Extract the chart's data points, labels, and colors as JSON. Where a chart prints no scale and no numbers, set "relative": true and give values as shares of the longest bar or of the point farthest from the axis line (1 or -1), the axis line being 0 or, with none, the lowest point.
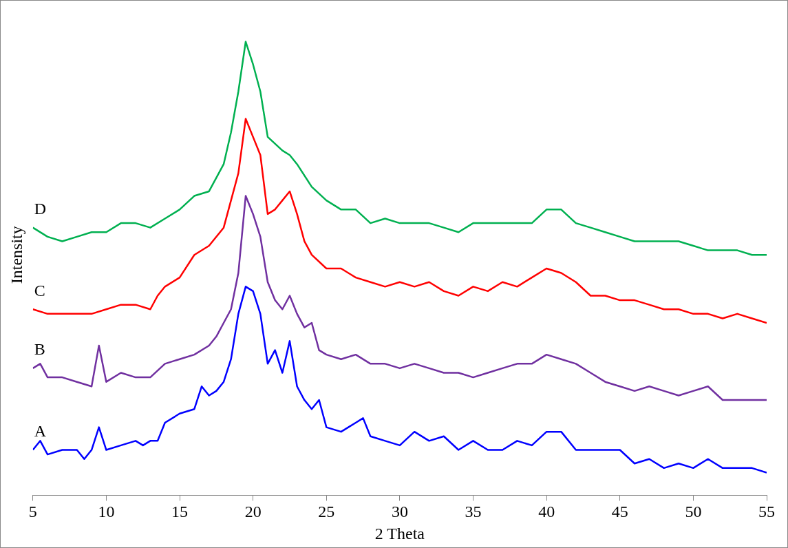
{
  "chart_data": {
    "type": "line",
    "xlabel": "2 Theta",
    "ylabel": "Intensity",
    "relative": true,
    "xlim": [
      5,
      55
    ],
    "xticks": [
      5,
      10,
      15,
      20,
      25,
      30,
      35,
      40,
      45,
      50,
      55
    ],
    "grid": false,
    "legend": false,
    "marker": "none",
    "line_style": "solid",
    "series": [
      {
        "name": "A",
        "color": "#0000ff",
        "x": [
          5,
          5.5,
          6,
          7,
          8,
          8.5,
          9,
          9.5,
          10,
          11,
          12,
          12.5,
          13,
          13.5,
          14,
          15,
          16,
          16.5,
          17,
          17.5,
          18,
          18.5,
          19,
          19.5,
          20,
          20.5,
          21,
          21.5,
          22,
          22.5,
          23,
          23.5,
          24,
          24.5,
          25,
          26,
          27,
          27.5,
          28,
          29,
          30,
          31,
          32,
          33,
          34,
          35,
          36,
          37,
          38,
          39,
          40,
          41,
          42,
          43,
          44,
          45,
          46,
          47,
          48,
          49,
          50,
          51,
          52,
          53,
          54,
          55
        ],
        "values": [
          0.1,
          0.12,
          0.09,
          0.1,
          0.1,
          0.08,
          0.1,
          0.15,
          0.1,
          0.11,
          0.12,
          0.11,
          0.12,
          0.12,
          0.16,
          0.18,
          0.19,
          0.24,
          0.22,
          0.23,
          0.25,
          0.3,
          0.4,
          0.46,
          0.45,
          0.4,
          0.29,
          0.32,
          0.27,
          0.34,
          0.24,
          0.21,
          0.19,
          0.21,
          0.15,
          0.14,
          0.16,
          0.17,
          0.13,
          0.12,
          0.11,
          0.14,
          0.12,
          0.13,
          0.1,
          0.12,
          0.1,
          0.1,
          0.12,
          0.11,
          0.14,
          0.14,
          0.1,
          0.1,
          0.1,
          0.1,
          0.07,
          0.08,
          0.06,
          0.07,
          0.06,
          0.08,
          0.06,
          0.06,
          0.06,
          0.05
        ]
      },
      {
        "name": "B",
        "color": "#7030a0",
        "x": [
          5,
          5.5,
          6,
          7,
          8,
          9,
          9.5,
          10,
          11,
          12,
          13,
          14,
          15,
          16,
          17,
          17.5,
          18,
          18.5,
          19,
          19.5,
          20,
          20.5,
          21,
          21.5,
          22,
          22.5,
          23,
          23.5,
          24,
          24.5,
          25,
          26,
          27,
          28,
          29,
          30,
          31,
          32,
          33,
          34,
          35,
          36,
          37,
          38,
          39,
          40,
          41,
          42,
          43,
          44,
          45,
          46,
          47,
          48,
          49,
          50,
          51,
          52,
          53,
          54,
          55
        ],
        "values": [
          0.28,
          0.29,
          0.26,
          0.26,
          0.25,
          0.24,
          0.33,
          0.25,
          0.27,
          0.26,
          0.26,
          0.29,
          0.3,
          0.31,
          0.33,
          0.35,
          0.38,
          0.41,
          0.49,
          0.66,
          0.62,
          0.57,
          0.47,
          0.43,
          0.41,
          0.44,
          0.4,
          0.37,
          0.38,
          0.32,
          0.31,
          0.3,
          0.31,
          0.29,
          0.29,
          0.28,
          0.29,
          0.28,
          0.27,
          0.27,
          0.26,
          0.27,
          0.28,
          0.29,
          0.29,
          0.31,
          0.3,
          0.29,
          0.27,
          0.25,
          0.24,
          0.23,
          0.24,
          0.23,
          0.22,
          0.23,
          0.24,
          0.21,
          0.21,
          0.21,
          0.21
        ]
      },
      {
        "name": "C",
        "color": "#ff0000",
        "x": [
          5,
          6,
          7,
          8,
          9,
          10,
          11,
          12,
          13,
          13.5,
          14,
          15,
          16,
          17,
          18,
          18.5,
          19,
          19.5,
          20,
          20.5,
          21,
          21.5,
          22,
          22.5,
          23,
          23.5,
          24,
          25,
          26,
          27,
          28,
          29,
          30,
          31,
          32,
          33,
          34,
          35,
          36,
          37,
          38,
          39,
          40,
          41,
          42,
          43,
          44,
          45,
          46,
          47,
          48,
          49,
          50,
          51,
          52,
          53,
          54,
          55
        ],
        "values": [
          0.41,
          0.4,
          0.4,
          0.4,
          0.4,
          0.41,
          0.42,
          0.42,
          0.41,
          0.44,
          0.46,
          0.48,
          0.53,
          0.55,
          0.59,
          0.65,
          0.71,
          0.83,
          0.79,
          0.75,
          0.62,
          0.63,
          0.65,
          0.67,
          0.62,
          0.56,
          0.53,
          0.5,
          0.5,
          0.48,
          0.47,
          0.46,
          0.47,
          0.46,
          0.47,
          0.45,
          0.44,
          0.46,
          0.45,
          0.47,
          0.46,
          0.48,
          0.5,
          0.49,
          0.47,
          0.44,
          0.44,
          0.43,
          0.43,
          0.42,
          0.41,
          0.41,
          0.4,
          0.4,
          0.39,
          0.4,
          0.39,
          0.38
        ]
      },
      {
        "name": "D",
        "color": "#00b050",
        "x": [
          5,
          6,
          7,
          8,
          9,
          10,
          11,
          12,
          13,
          14,
          15,
          16,
          17,
          18,
          18.5,
          19,
          19.5,
          20,
          20.5,
          21,
          22,
          22.5,
          23,
          24,
          25,
          26,
          27,
          28,
          29,
          30,
          31,
          32,
          33,
          34,
          35,
          36,
          37,
          38,
          39,
          40,
          41,
          42,
          43,
          44,
          45,
          46,
          47,
          48,
          49,
          50,
          51,
          52,
          53,
          54,
          55
        ],
        "values": [
          0.59,
          0.57,
          0.56,
          0.57,
          0.58,
          0.58,
          0.6,
          0.6,
          0.59,
          0.61,
          0.63,
          0.66,
          0.67,
          0.73,
          0.8,
          0.89,
          1.0,
          0.95,
          0.89,
          0.79,
          0.76,
          0.75,
          0.73,
          0.68,
          0.65,
          0.63,
          0.63,
          0.6,
          0.61,
          0.6,
          0.6,
          0.6,
          0.59,
          0.58,
          0.6,
          0.6,
          0.6,
          0.6,
          0.6,
          0.63,
          0.63,
          0.6,
          0.59,
          0.58,
          0.57,
          0.56,
          0.56,
          0.56,
          0.56,
          0.55,
          0.54,
          0.54,
          0.54,
          0.53,
          0.53
        ]
      }
    ]
  }
}
